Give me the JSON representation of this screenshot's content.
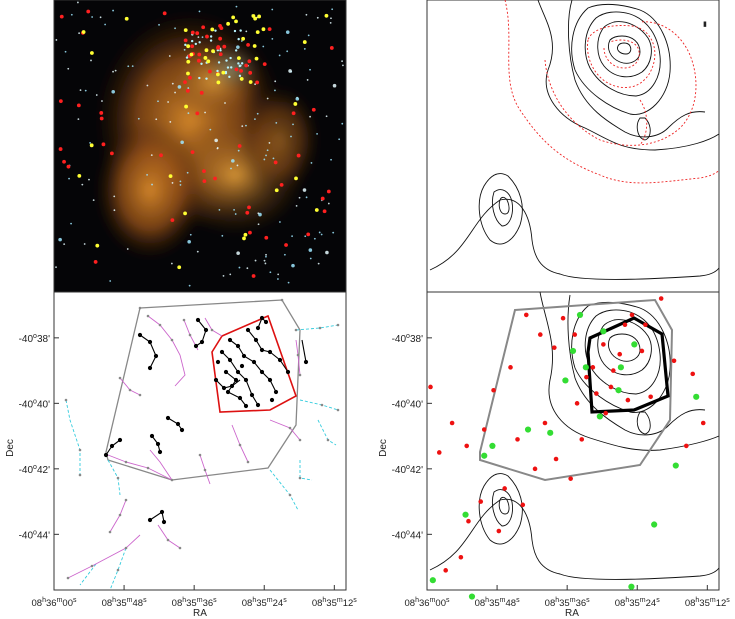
{
  "figure": {
    "panels": [
      "infrared-image",
      "contour-map",
      "mst-map",
      "cluster-overlay"
    ]
  },
  "axes": {
    "ylabel": "Dec",
    "xlabel": "RA",
    "dec_ticks": [
      {
        "h": "-40",
        "s": "o",
        "m": "38'",
        "v": 38
      },
      {
        "h": "-40",
        "s": "o",
        "m": "40'",
        "v": 40
      },
      {
        "h": "-40",
        "s": "o",
        "m": "42'",
        "v": 42
      },
      {
        "h": "-40",
        "s": "o",
        "m": "44'",
        "v": 44
      }
    ],
    "ra_ticks": [
      {
        "h": "08",
        "hs": "h",
        "m": "36",
        "ms": "m",
        "s": "00",
        "ss": "s",
        "v": 0
      },
      {
        "h": "08",
        "hs": "h",
        "m": "35",
        "ms": "m",
        "s": "48",
        "ss": "s",
        "v": 12
      },
      {
        "h": "08",
        "hs": "h",
        "m": "35",
        "ms": "m",
        "s": "36",
        "ss": "s",
        "v": 24
      },
      {
        "h": "08",
        "hs": "h",
        "m": "35",
        "ms": "m",
        "s": "24",
        "ss": "s",
        "v": 36
      },
      {
        "h": "08",
        "hs": "h",
        "m": "35",
        "ms": "m",
        "s": "12",
        "ss": "s",
        "v": 48
      }
    ],
    "ra_range_sec": [
      0,
      50
    ],
    "dec_range_arcmin": [
      36.6,
      45.7
    ]
  },
  "colors": {
    "yso_class1": "#ffff33",
    "yso_class2": "#ff2020",
    "core_hull": "#dd1111",
    "outer_hull": "#888888",
    "mst_core": "#000000",
    "mst_branch": "#cc66cc",
    "mst_sparse": "#33ccdd",
    "contour": "#111111",
    "contour_dotted": "#ee2222",
    "green_yso": "#33dd33",
    "red_yso": "#ee1111"
  },
  "chart_data": [
    {
      "type": "scatter",
      "panel": "cluster-overlay",
      "series": [
        {
          "name": "",
          "color": "red",
          "points": [
            [
              45.5,
              39.1
            ],
            [
              42.3,
              38.7
            ],
            [
              35.1,
              37.3
            ],
            [
              37.4,
              37.6
            ],
            [
              33.0,
              38.5
            ],
            [
              30.2,
              38.2
            ],
            [
              28.4,
              38.9
            ],
            [
              25.3,
              37.9
            ],
            [
              23.3,
              37.4
            ],
            [
              21.8,
              38.3
            ],
            [
              19.4,
              37.9
            ],
            [
              17.0,
              37.3
            ],
            [
              14.3,
              38.9
            ],
            [
              11.4,
              39.6
            ],
            [
              9.8,
              40.8
            ],
            [
              6.8,
              41.3
            ],
            [
              4.3,
              40.6
            ],
            [
              2.1,
              41.5
            ],
            [
              0.6,
              39.5
            ],
            [
              30.6,
              40.3
            ],
            [
              26.5,
              41.1
            ],
            [
              22.1,
              41.7
            ],
            [
              20.2,
              40.6
            ],
            [
              15.5,
              41.1
            ],
            [
              13.3,
              42.6
            ],
            [
              16.4,
              43.1
            ],
            [
              12.3,
              43.9
            ],
            [
              9.2,
              43.0
            ],
            [
              7.1,
              43.6
            ],
            [
              5.8,
              44.7
            ],
            [
              3.2,
              45.1
            ],
            [
              47.3,
              40.6
            ],
            [
              44.4,
              41.3
            ],
            [
              38.3,
              39.8
            ],
            [
              34.4,
              39.9
            ],
            [
              31.5,
              39.5
            ],
            [
              29.0,
              39.7
            ],
            [
              18.5,
              42.0
            ],
            [
              24.6,
              42.3
            ],
            [
              40.1,
              36.8
            ],
            [
              36.8,
              38.4
            ],
            [
              33.9,
              37.6
            ],
            [
              31.9,
              39.0
            ],
            [
              27.3,
              39.2
            ],
            [
              25.7,
              40.0
            ]
          ]
        },
        {
          "name": "",
          "color": "green",
          "points": [
            [
              26.2,
              37.3
            ],
            [
              25.0,
              38.4
            ],
            [
              27.2,
              38.9
            ],
            [
              30.2,
              37.8
            ],
            [
              33.2,
              38.9
            ],
            [
              35.5,
              38.2
            ],
            [
              23.7,
              39.3
            ],
            [
              21.1,
              40.9
            ],
            [
              17.3,
              40.8
            ],
            [
              11.2,
              41.3
            ],
            [
              9.8,
              41.6
            ],
            [
              6.6,
              43.4
            ],
            [
              1.0,
              45.4
            ],
            [
              7.7,
              45.9
            ],
            [
              38.9,
              43.7
            ],
            [
              42.6,
              41.9
            ],
            [
              35.0,
              45.6
            ],
            [
              46.1,
              39.8
            ],
            [
              29.6,
              40.4
            ],
            [
              32.8,
              39.6
            ]
          ]
        }
      ]
    }
  ]
}
